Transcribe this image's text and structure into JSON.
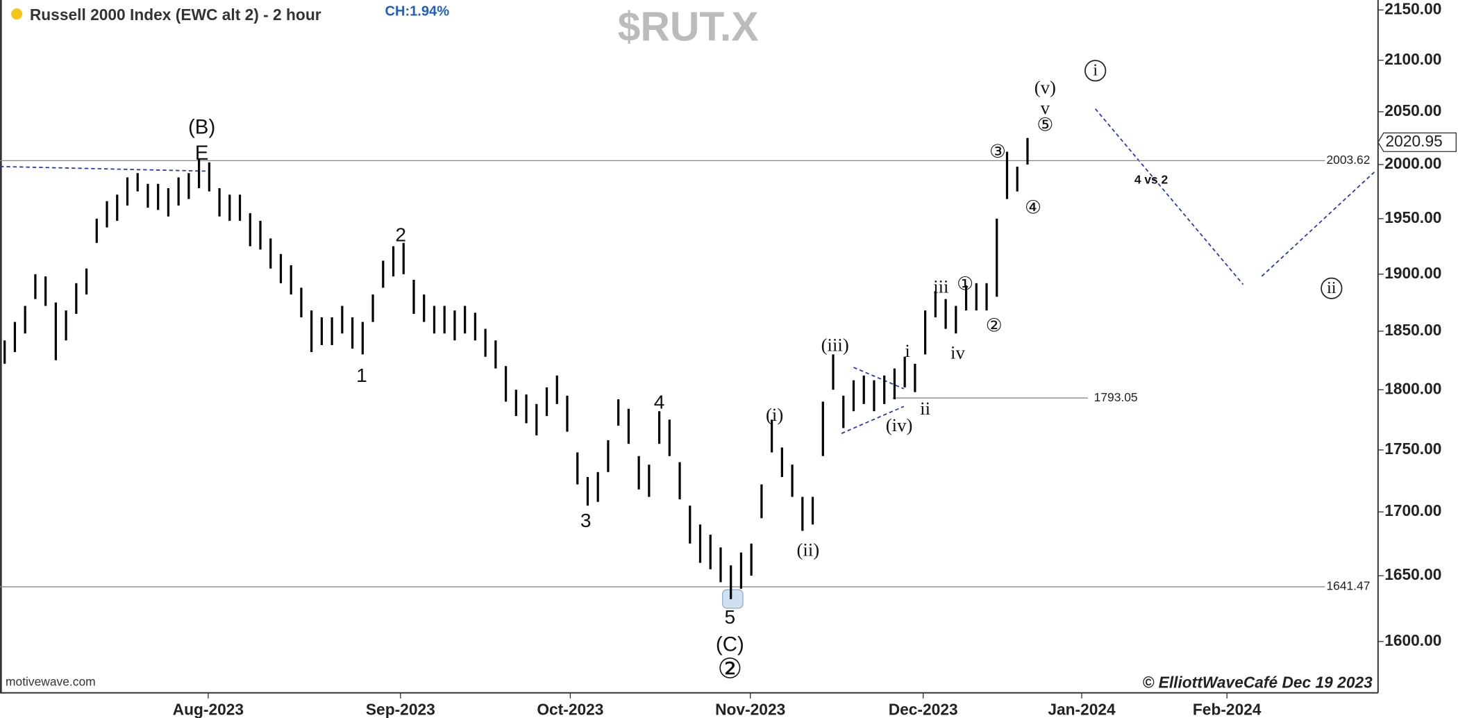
{
  "chart_data": {
    "type": "range-bar",
    "title": "Russell 2000 Index (EWC alt 2) - 2 hour",
    "change": "CH:1.94%",
    "symbol": "$RUT.X",
    "source": "motivewave.com",
    "copyright": "© ElliottWaveCafé Dec 19 2023",
    "color": "#000000",
    "log_scale": true,
    "categories": [
      null,
      null,
      null,
      null,
      null,
      null,
      null,
      null,
      null,
      null,
      null,
      null,
      null,
      null,
      null,
      null,
      null,
      null,
      null,
      null,
      null,
      null,
      null,
      null,
      null,
      null,
      null,
      null,
      null,
      null,
      null,
      null,
      null,
      null,
      null,
      null,
      null,
      null,
      null,
      null,
      null,
      null,
      null,
      null,
      null,
      null,
      null,
      null,
      null,
      null,
      null,
      null,
      null,
      null,
      null,
      null,
      null,
      null,
      null,
      null,
      null,
      null,
      null,
      null,
      null,
      null,
      null,
      null,
      null,
      null,
      null,
      null,
      null,
      null,
      null,
      null,
      null,
      null,
      null,
      null,
      null,
      null,
      null,
      null,
      null,
      null,
      null,
      null,
      null,
      null,
      null,
      null,
      null,
      null,
      null,
      null,
      null,
      null,
      null,
      null,
      null
    ],
    "high": [
      1842,
      1858,
      1872,
      1900,
      1898,
      1875,
      1868,
      1892,
      1905,
      1950,
      1966,
      1972,
      1988,
      1992,
      1982,
      1982,
      1978,
      1988,
      1992,
      2005,
      2002,
      1978,
      1972,
      1972,
      1955,
      1948,
      1932,
      1918,
      1908,
      1888,
      1868,
      1862,
      1862,
      1872,
      1862,
      1858,
      1882,
      1912,
      1925,
      1928,
      1895,
      1882,
      1872,
      1872,
      1868,
      1872,
      1866,
      1852,
      1842,
      1820,
      1800,
      1796,
      1788,
      1802,
      1812,
      1795,
      1748,
      1728,
      1732,
      1758,
      1792,
      1784,
      1745,
      1738,
      1782,
      1775,
      1740,
      1705,
      1690,
      1682,
      1672,
      1658,
      1668,
      1675,
      1722,
      1775,
      1752,
      1738,
      1712,
      1712,
      1790,
      1830,
      1795,
      1808,
      1812,
      1808,
      1812,
      1818,
      1828,
      1822,
      1868,
      1885,
      1878,
      1872,
      1890,
      1892,
      1892,
      1950,
      2012,
      1998,
      2025
    ],
    "low": [
      1822,
      1832,
      1848,
      1878,
      1872,
      1825,
      1842,
      1865,
      1882,
      1928,
      1942,
      1948,
      1962,
      1975,
      1960,
      1958,
      1952,
      1962,
      1968,
      1978,
      1975,
      1952,
      1948,
      1948,
      1925,
      1922,
      1905,
      1892,
      1882,
      1862,
      1832,
      1838,
      1838,
      1848,
      1835,
      1830,
      1858,
      1888,
      1898,
      1900,
      1865,
      1858,
      1848,
      1848,
      1842,
      1848,
      1842,
      1828,
      1818,
      1790,
      1778,
      1772,
      1762,
      1778,
      1788,
      1765,
      1722,
      1705,
      1708,
      1732,
      1770,
      1755,
      1718,
      1712,
      1755,
      1745,
      1710,
      1675,
      1660,
      1655,
      1645,
      1632,
      1640,
      1650,
      1695,
      1748,
      1728,
      1712,
      1685,
      1690,
      1745,
      1800,
      1768,
      1782,
      1788,
      1782,
      1788,
      1792,
      1802,
      1798,
      1830,
      1862,
      1852,
      1848,
      1868,
      1868,
      1868,
      1880,
      1968,
      1975,
      2000
    ],
    "xlim": [
      -0.4545,
      134.27
    ],
    "xticks": [
      {
        "value": 19.9,
        "label": "Aug-2023"
      },
      {
        "value": 38.7,
        "label": "Sep-2023"
      },
      {
        "value": 55.3,
        "label": "Oct-2023"
      },
      {
        "value": 72.9,
        "label": "Nov-2023"
      },
      {
        "value": 89.8,
        "label": "Dec-2023"
      },
      {
        "value": 105.3,
        "label": "Jan-2024"
      },
      {
        "value": 119.5,
        "label": "Feb-2024"
      }
    ],
    "ylim": [
      1562,
      2160
    ],
    "yticks": [
      {
        "value": 1600,
        "label": "1600.00"
      },
      {
        "value": 1650,
        "label": "1650.00"
      },
      {
        "value": 1700,
        "label": "1700.00"
      },
      {
        "value": 1750,
        "label": "1750.00"
      },
      {
        "value": 1800,
        "label": "1800.00"
      },
      {
        "value": 1850,
        "label": "1850.00"
      },
      {
        "value": 1900,
        "label": "1900.00"
      },
      {
        "value": 1950,
        "label": "1950.00"
      },
      {
        "value": 2000,
        "label": "2000.00"
      },
      {
        "value": 2050,
        "label": "2050.00"
      },
      {
        "value": 2100,
        "label": "2100.00"
      },
      {
        "value": 2150,
        "label": "2150.00"
      }
    ],
    "levels": [
      2003.62,
      1793.05,
      1641.47
    ],
    "last_price": 2020.95,
    "annotations": [
      "(B)",
      "E",
      "1",
      "2",
      "3",
      "4",
      "5",
      "(C)",
      "②",
      "(i)",
      "(ii)",
      "(iii)",
      "(iv)",
      "i",
      "ii",
      "iii",
      "iv",
      "①",
      "②",
      "③",
      "④",
      "⑤",
      "v",
      "(v)",
      "i",
      "ii",
      "4 vs 2"
    ]
  }
}
